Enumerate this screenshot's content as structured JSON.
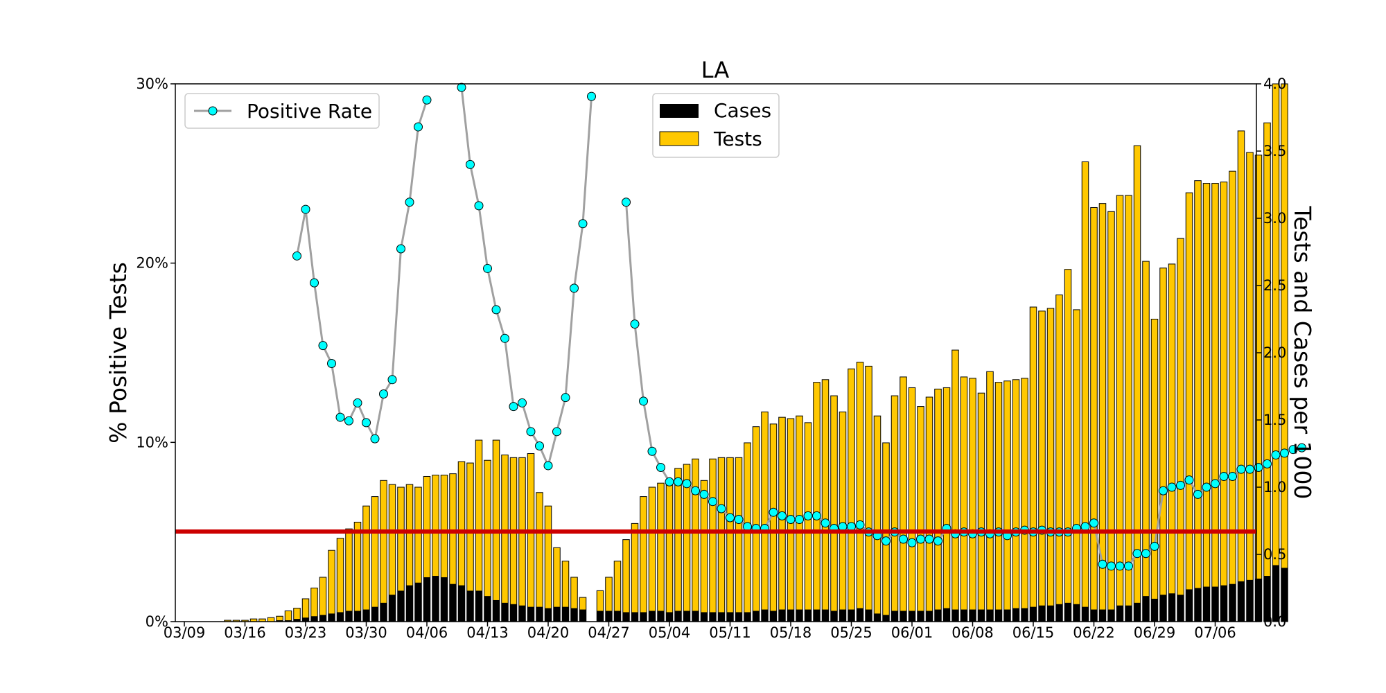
{
  "chart_data": {
    "type": "bar",
    "title": "LA",
    "ylabel_left": "% Positive Tests",
    "ylabel_right": "Tests and Cases per 1000",
    "ylim_left": [
      0,
      30
    ],
    "ylim_right": [
      0,
      4.0
    ],
    "left_ticks": [
      "0%",
      "10%",
      "20%",
      "30%"
    ],
    "right_ticks": [
      "0.0",
      "0.5",
      "1.0",
      "1.5",
      "2.0",
      "2.5",
      "3.0",
      "3.5",
      "4.0"
    ],
    "x_tick_labels": [
      "03/09",
      "03/16",
      "03/23",
      "03/30",
      "04/06",
      "04/13",
      "04/20",
      "04/27",
      "05/04",
      "05/11",
      "05/18",
      "05/25",
      "06/01",
      "06/08",
      "06/15",
      "06/22",
      "06/29",
      "07/06"
    ],
    "start_date": "03/09",
    "threshold_percent": 5,
    "grid": false,
    "colors": {
      "tests": "#FFC800",
      "cases": "#000000",
      "positive_rate_line": "#A0A0A0",
      "positive_rate_marker": "#00FFFF",
      "threshold": "#CC0000"
    },
    "legends": {
      "positive_rate": "Positive Rate",
      "cases": "Cases",
      "tests": "Tests"
    },
    "tests_per_1000": [
      0,
      0,
      0,
      0,
      0,
      0.01,
      0.01,
      0.01,
      0.02,
      0.02,
      0.03,
      0.04,
      0.08,
      0.1,
      0.17,
      0.25,
      0.33,
      0.53,
      0.62,
      0.69,
      0.74,
      0.86,
      0.93,
      1.05,
      1.02,
      1.0,
      1.02,
      1.0,
      1.08,
      1.09,
      1.09,
      1.1,
      1.19,
      1.18,
      1.35,
      1.2,
      1.35,
      1.24,
      1.22,
      1.22,
      1.25,
      0.96,
      0.86,
      0.55,
      0.45,
      0.33,
      0.18,
      0,
      0.23,
      0.33,
      0.45,
      0.61,
      0.73,
      0.93,
      1.0,
      1.03,
      1.05,
      1.14,
      1.17,
      1.21,
      1.05,
      1.21,
      1.22,
      1.22,
      1.22,
      1.33,
      1.45,
      1.56,
      1.47,
      1.52,
      1.51,
      1.53,
      1.48,
      1.78,
      1.8,
      1.68,
      1.56,
      1.88,
      1.93,
      1.9,
      1.53,
      1.33,
      1.68,
      1.82,
      1.74,
      1.6,
      1.67,
      1.73,
      1.74,
      2.02,
      1.82,
      1.81,
      1.7,
      1.86,
      1.78,
      1.79,
      1.8,
      1.81,
      2.34,
      2.31,
      2.33,
      2.43,
      2.62,
      2.32,
      3.42,
      3.08,
      3.11,
      3.05,
      3.17,
      3.17,
      3.54,
      2.68,
      2.25,
      2.63,
      2.66,
      2.85,
      3.19,
      3.28,
      3.26,
      3.26,
      3.27,
      3.35,
      3.65,
      3.49,
      3.47,
      3.71,
      4.0,
      4.0
    ],
    "cases_per_1000": [
      0,
      0,
      0,
      0,
      0,
      0,
      0,
      0,
      0,
      0,
      0,
      0.01,
      0.01,
      0.02,
      0.03,
      0.04,
      0.05,
      0.06,
      0.07,
      0.08,
      0.08,
      0.09,
      0.11,
      0.14,
      0.2,
      0.23,
      0.27,
      0.29,
      0.33,
      0.34,
      0.33,
      0.28,
      0.27,
      0.23,
      0.23,
      0.19,
      0.16,
      0.14,
      0.13,
      0.12,
      0.11,
      0.11,
      0.1,
      0.11,
      0.11,
      0.1,
      0.09,
      0,
      0.08,
      0.08,
      0.08,
      0.07,
      0.07,
      0.07,
      0.08,
      0.08,
      0.07,
      0.08,
      0.08,
      0.08,
      0.07,
      0.07,
      0.07,
      0.07,
      0.07,
      0.07,
      0.08,
      0.09,
      0.08,
      0.09,
      0.09,
      0.09,
      0.09,
      0.09,
      0.09,
      0.08,
      0.09,
      0.09,
      0.1,
      0.09,
      0.06,
      0.05,
      0.08,
      0.08,
      0.08,
      0.08,
      0.08,
      0.09,
      0.1,
      0.09,
      0.09,
      0.09,
      0.09,
      0.09,
      0.09,
      0.09,
      0.1,
      0.1,
      0.11,
      0.12,
      0.12,
      0.13,
      0.14,
      0.13,
      0.11,
      0.09,
      0.09,
      0.09,
      0.12,
      0.12,
      0.14,
      0.19,
      0.17,
      0.2,
      0.21,
      0.2,
      0.24,
      0.25,
      0.26,
      0.26,
      0.27,
      0.28,
      0.3,
      0.31,
      0.32,
      0.34,
      0.42,
      0.4
    ],
    "positive_rate_percent": [
      null,
      null,
      null,
      null,
      null,
      null,
      null,
      null,
      null,
      null,
      null,
      null,
      null,
      20.4,
      23.0,
      18.9,
      15.4,
      14.4,
      11.4,
      11.2,
      12.2,
      11.1,
      10.2,
      12.7,
      13.5,
      20.8,
      23.4,
      27.6,
      29.1,
      null,
      null,
      null,
      29.8,
      25.5,
      23.2,
      19.7,
      17.4,
      15.8,
      12.0,
      12.2,
      10.6,
      9.8,
      8.7,
      10.6,
      12.5,
      18.6,
      22.2,
      29.3,
      null,
      null,
      null,
      23.4,
      16.6,
      12.3,
      9.5,
      8.6,
      7.8,
      7.8,
      7.7,
      7.3,
      7.1,
      6.7,
      6.3,
      5.8,
      5.7,
      5.3,
      5.2,
      5.2,
      6.1,
      5.9,
      5.7,
      5.7,
      5.9,
      5.9,
      5.5,
      5.2,
      5.3,
      5.3,
      5.4,
      5.0,
      4.8,
      4.5,
      5.0,
      4.6,
      4.4,
      4.6,
      4.6,
      4.5,
      5.2,
      4.9,
      5.0,
      4.9,
      5.0,
      4.9,
      5.0,
      4.8,
      5.0,
      5.1,
      5.0,
      5.1,
      5.0,
      5.0,
      5.0,
      5.2,
      5.3,
      5.5,
      3.2,
      3.1,
      3.1,
      3.1,
      3.8,
      3.8,
      4.2,
      7.3,
      7.5,
      7.6,
      7.9,
      7.1,
      7.5,
      7.7,
      8.1,
      8.1,
      8.5,
      8.5,
      8.6,
      8.8,
      9.3,
      9.4,
      9.6,
      9.7
    ]
  }
}
